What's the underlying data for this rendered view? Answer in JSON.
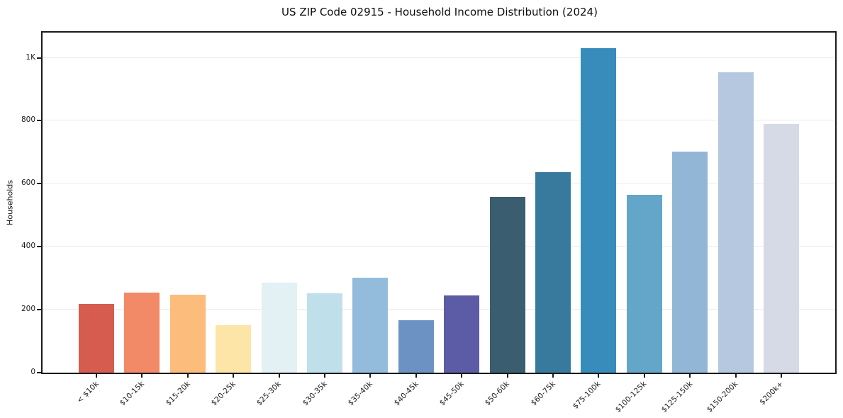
{
  "figure": {
    "title": "US ZIP Code 02915 - Household Income Distribution (2024)",
    "background_color": "#ffffff",
    "spine_color": "#1a1a1a",
    "gridline_color": "#ebebeb",
    "text_color": "#1a1a1a"
  },
  "chart_data": {
    "type": "bar",
    "title": "US ZIP Code 02915 - Household Income Distribution (2024)",
    "xlabel": "",
    "ylabel": "Households",
    "categories": [
      "< $10k",
      "$10-15k",
      "$15-20k",
      "$20-25k",
      "$25-30k",
      "$30-35k",
      "$35-40k",
      "$40-45k",
      "$45-50k",
      "$50-60k",
      "$60-75k",
      "$75-100k",
      "$100-125k",
      "$125-150k",
      "$150-200k",
      "$200k+"
    ],
    "values": [
      218,
      255,
      248,
      151,
      286,
      252,
      301,
      166,
      245,
      558,
      636,
      1030,
      564,
      702,
      955,
      789
    ],
    "bar_colors": [
      "#d65c50",
      "#f28a68",
      "#fcbc7c",
      "#fde5a7",
      "#e3f0f4",
      "#bfdfeb",
      "#93bcdc",
      "#6c92c4",
      "#5c5ca6",
      "#3a5e70",
      "#387a9e",
      "#388cbc",
      "#64a6ca",
      "#92b6d6",
      "#b6c8e0",
      "#d6dae6"
    ],
    "ylim": [
      0,
      1080
    ],
    "yticks": [
      {
        "value": 0,
        "label": "0"
      },
      {
        "value": 200,
        "label": "200"
      },
      {
        "value": 400,
        "label": "400"
      },
      {
        "value": 600,
        "label": "600"
      },
      {
        "value": 800,
        "label": "800"
      },
      {
        "value": 1000,
        "label": "1K"
      }
    ],
    "grid": "horizontal",
    "legend": "none",
    "xtick_rotation": 45
  }
}
